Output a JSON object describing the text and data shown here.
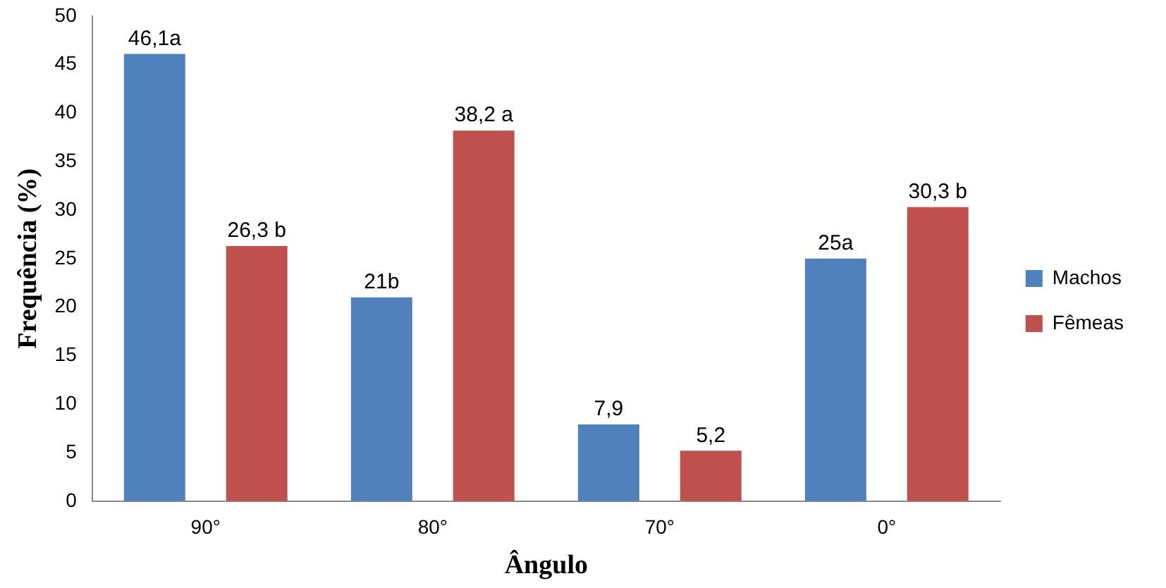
{
  "chart_data": {
    "type": "bar",
    "xlabel": "Ângulo",
    "ylabel": "Frequência (%)",
    "categories": [
      "90°",
      "80°",
      "70°",
      "0°"
    ],
    "series": [
      {
        "name": "Machos",
        "color": "#4f81bd",
        "values": [
          46.1,
          21,
          7.9,
          25
        ],
        "value_labels": [
          "46,1a",
          "21b",
          "7,9",
          "25a"
        ]
      },
      {
        "name": "Fêmeas",
        "color": "#c0504d",
        "values": [
          26.3,
          38.2,
          5.2,
          30.3
        ],
        "value_labels": [
          "26,3 b",
          "38,2 a",
          "5,2",
          "30,3 b"
        ]
      }
    ],
    "ylim": [
      0,
      50
    ],
    "yticks": [
      0,
      5,
      10,
      15,
      20,
      25,
      30,
      35,
      40,
      45,
      50
    ],
    "grid": false,
    "legend": "right"
  }
}
